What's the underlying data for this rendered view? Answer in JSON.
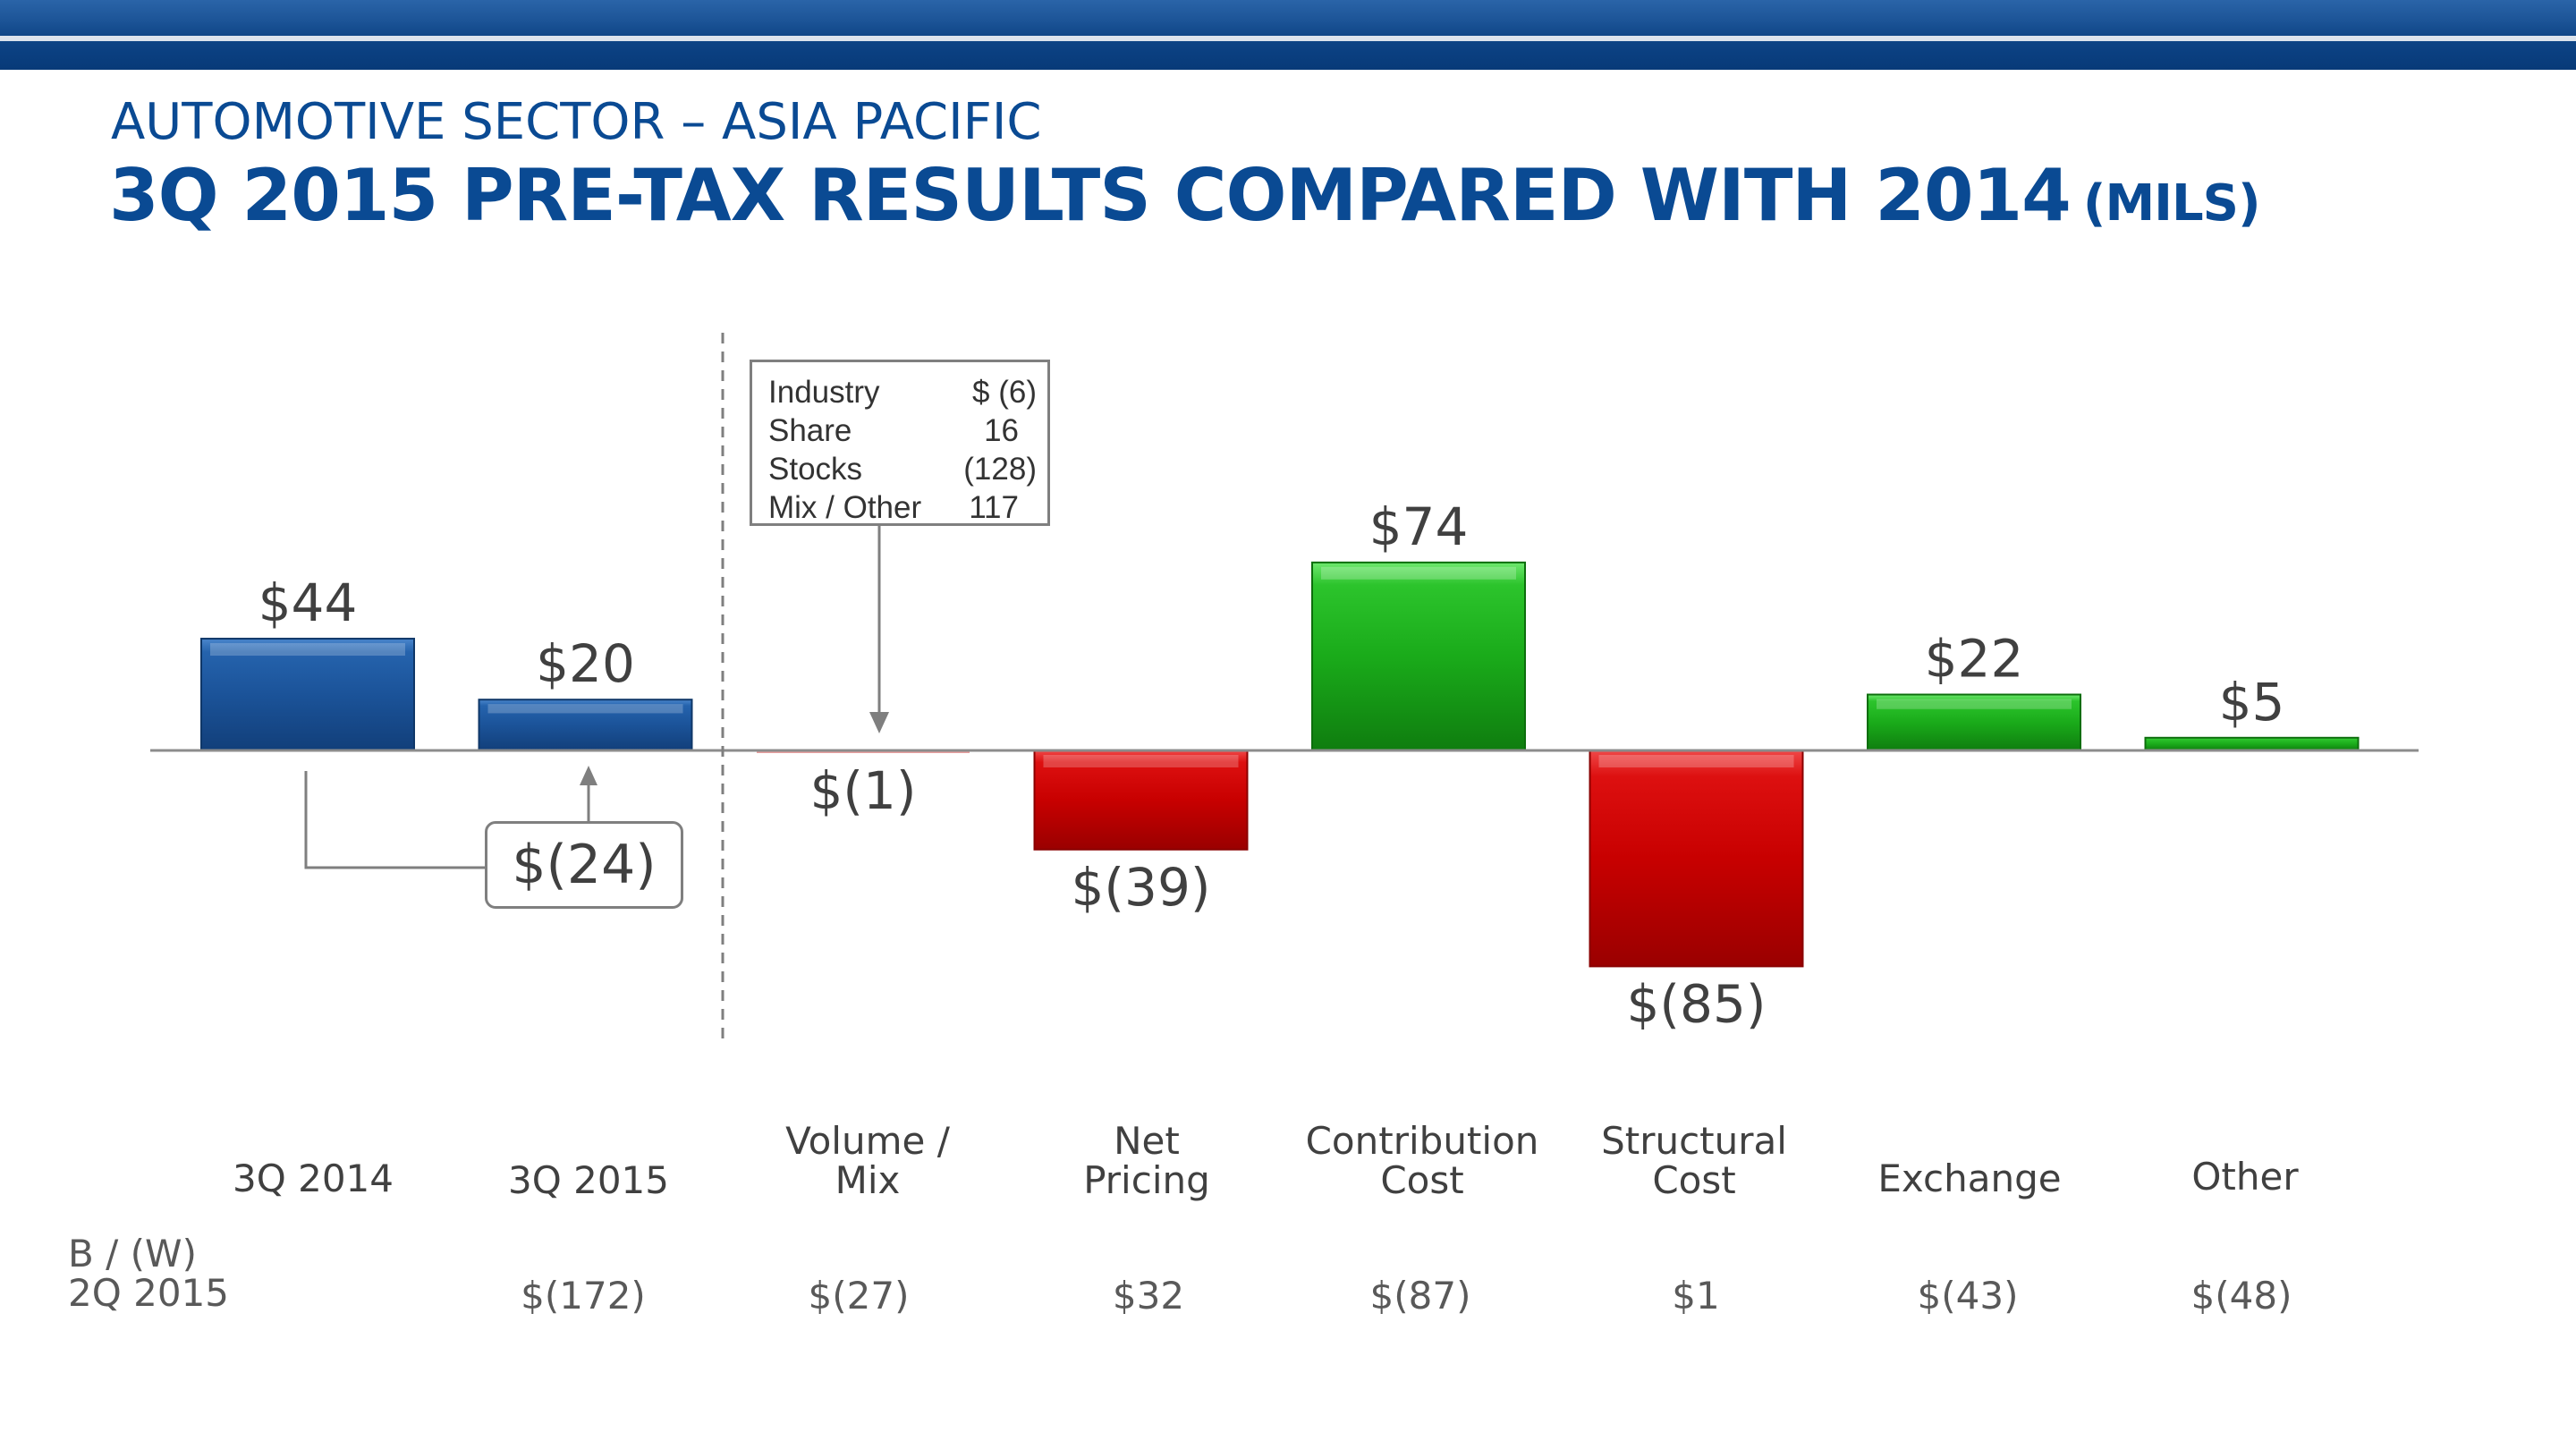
{
  "header": {
    "subtitle": "AUTOMOTIVE SECTOR – ASIA PACIFIC",
    "title": "3Q 2015 PRE-TAX RESULTS COMPARED WITH 2014",
    "title_unit": "(MILS)"
  },
  "chart_data": {
    "type": "bar",
    "categories": [
      "3Q 2014",
      "3Q 2015",
      "Volume /\nMix",
      "Net\nPricing",
      "Contribution\nCost",
      "Structural\nCost",
      "Exchange",
      "Other"
    ],
    "values": [
      44,
      20,
      -1,
      -39,
      74,
      -85,
      22,
      5
    ],
    "value_labels": [
      "$44",
      "$20",
      "$(1)",
      "$(39)",
      "$74",
      "$(85)",
      "$22",
      "$5"
    ],
    "bar_colors": [
      "#1c5aa3",
      "#1c5aa3",
      "#c00000",
      "#c00000",
      "#1fb01f",
      "#c00000",
      "#1fb01f",
      "#1fb01f"
    ],
    "change_label": "$(24)",
    "callout": [
      {
        "label": "Industry",
        "value": "$   (6)"
      },
      {
        "label": "Share",
        "value": "16"
      },
      {
        "label": "Stocks",
        "value": "(128)"
      },
      {
        "label": "Mix / Other",
        "value": "117"
      }
    ],
    "comparison": {
      "label": "B / (W)\n2Q 2015",
      "values": [
        "",
        "$(172)",
        "$(27)",
        "$32",
        "$(87)",
        "$1",
        "$(43)",
        "$(48)"
      ]
    }
  }
}
